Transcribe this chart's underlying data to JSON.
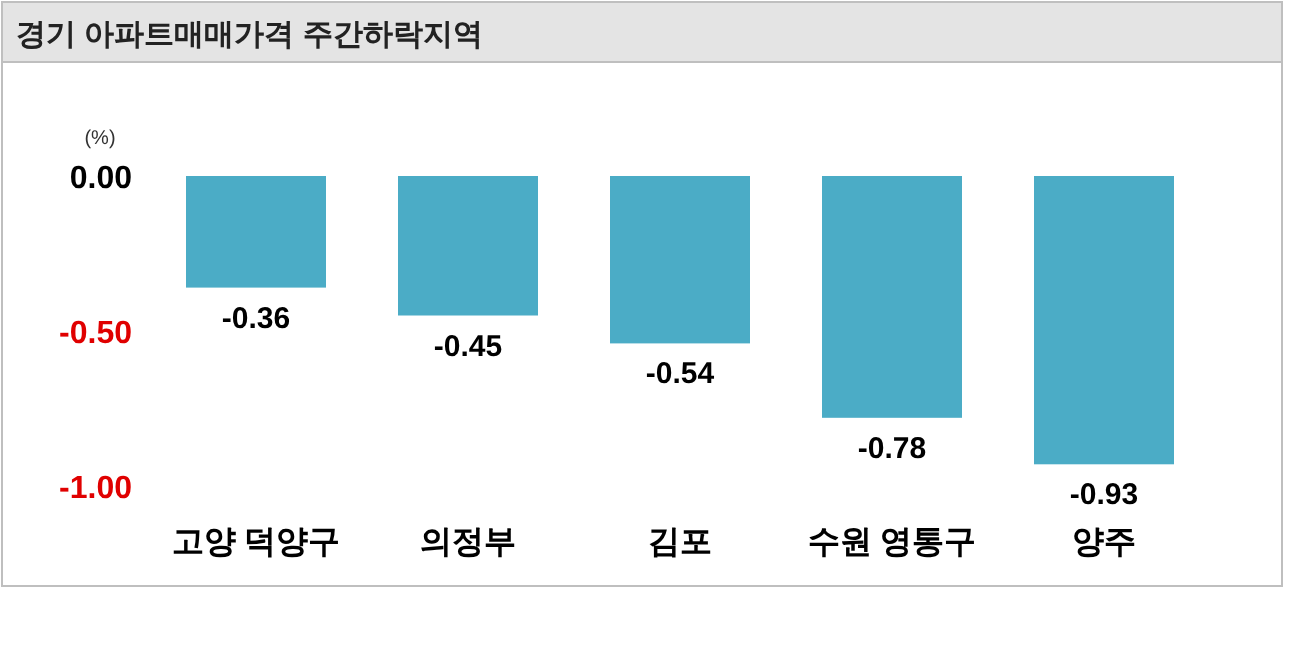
{
  "chart_data": {
    "type": "bar",
    "title": "경기 아파트매매가격 주간하락지역",
    "ylabel": "(%)",
    "categories": [
      "고양 덕양구",
      "의정부",
      "김포",
      "수원 영통구",
      "양주"
    ],
    "values": [
      -0.36,
      -0.45,
      -0.54,
      -0.78,
      -0.93
    ],
    "color": "#4bacc6",
    "value_labels": [
      "-0.36",
      "-0.45",
      "-0.54",
      "-0.78",
      "-0.93"
    ],
    "ylim": [
      -1.0,
      0.0
    ],
    "yticks": [
      {
        "value": 0,
        "label": "0.00"
      },
      {
        "value": -0.5,
        "label": "-0.50"
      },
      {
        "value": -1.0,
        "label": "-1.00"
      }
    ],
    "grid": false
  }
}
